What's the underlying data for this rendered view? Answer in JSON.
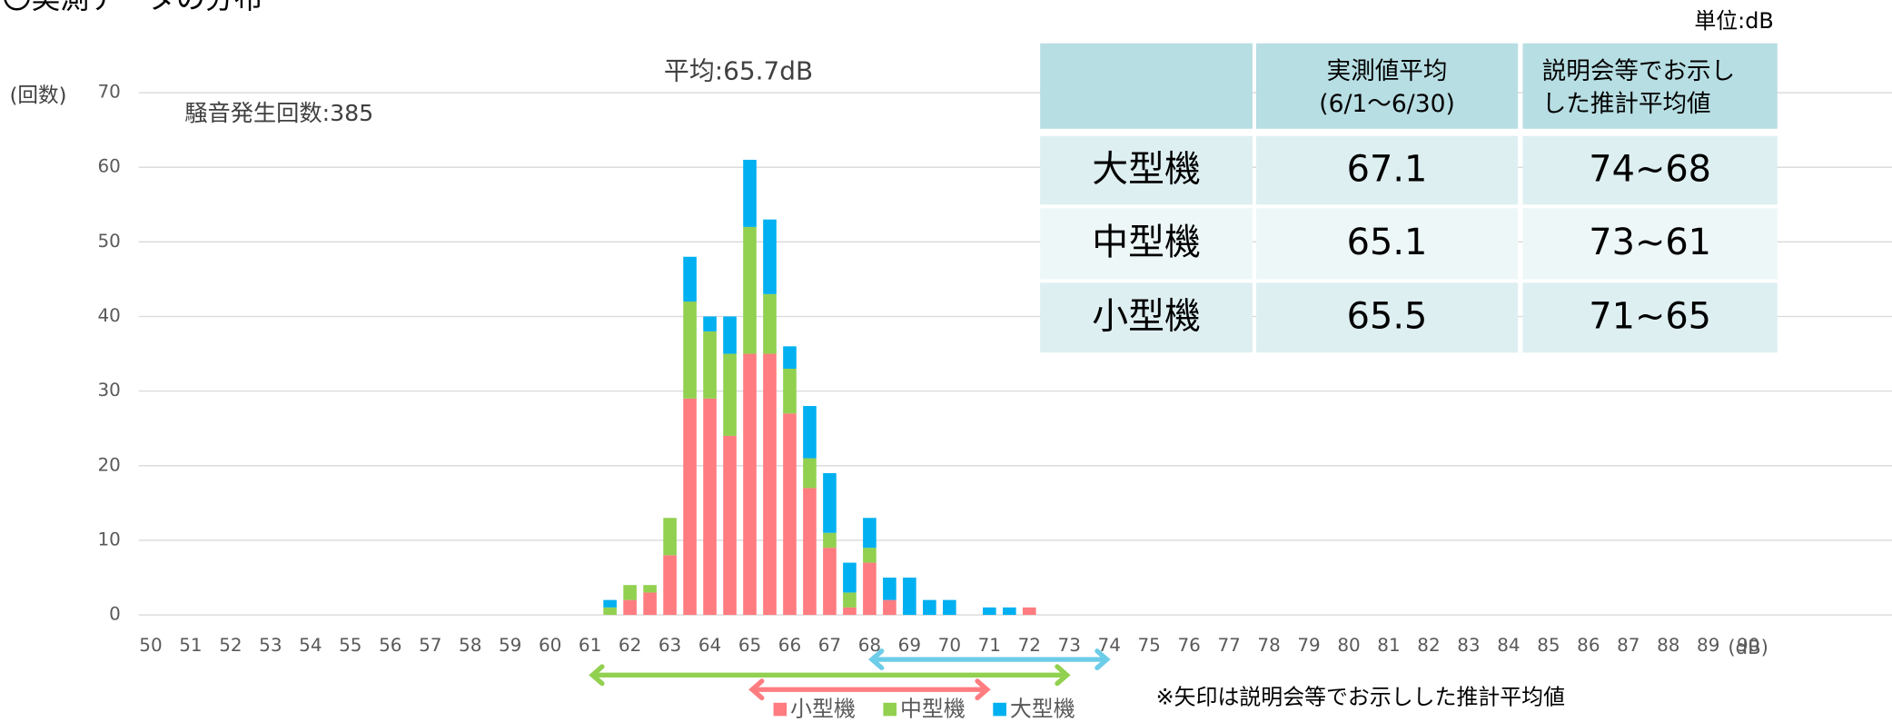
{
  "chart_data": {
    "type": "bar",
    "stacked": true,
    "title": "〇実測データの分布",
    "unit_note": "単位:dB",
    "average_label": "平均:65.7dB",
    "count_label": "騒音発生回数:385",
    "y_label": "(回数)",
    "x_label": "(dB)",
    "note": "※矢印は説明会等でお示しした推計平均値",
    "x": [
      61.5,
      62,
      62.5,
      63,
      63.5,
      64,
      64.5,
      65,
      65.5,
      66,
      66.5,
      67,
      67.5,
      68,
      68.5,
      69,
      69.5,
      70,
      71,
      71.5,
      72
    ],
    "series": [
      {
        "name": "小型機",
        "color": "#ff7c80",
        "values": [
          0,
          2,
          3,
          8,
          29,
          29,
          24,
          35,
          35,
          27,
          17,
          9,
          1,
          7,
          2,
          0,
          0,
          0,
          0,
          0,
          1
        ]
      },
      {
        "name": "中型機",
        "color": "#92d050",
        "values": [
          1,
          2,
          1,
          5,
          13,
          9,
          11,
          17,
          8,
          6,
          4,
          2,
          2,
          2,
          0,
          0,
          0,
          0,
          0,
          0,
          0
        ]
      },
      {
        "name": "大型機",
        "color": "#00b0f0",
        "values": [
          1,
          0,
          0,
          0,
          6,
          2,
          5,
          9,
          10,
          3,
          7,
          8,
          4,
          4,
          3,
          5,
          2,
          2,
          1,
          1,
          0
        ]
      }
    ],
    "xlim": [
      49.7,
      93.6
    ],
    "xticks": [
      50,
      51,
      52,
      53,
      54,
      55,
      56,
      57,
      58,
      59,
      60,
      61,
      62,
      63,
      64,
      65,
      66,
      67,
      68,
      69,
      70,
      71,
      72,
      73,
      74,
      75,
      76,
      77,
      78,
      79,
      80,
      81,
      82,
      83,
      84,
      85,
      86,
      87,
      88,
      89,
      90
    ],
    "ylim": [
      0,
      70
    ],
    "yticks": [
      0,
      10,
      20,
      30,
      40,
      50,
      60,
      70
    ],
    "grid": true,
    "arrows": [
      {
        "color": "#6ccde8",
        "from": 68,
        "to": 74
      },
      {
        "color": "#92d050",
        "from": 61,
        "to": 73
      },
      {
        "color": "#ff7c80",
        "from": 65,
        "to": 71
      }
    ],
    "table": {
      "header": [
        [
          "実測値平均",
          "(6/1〜6/30)"
        ],
        [
          "説明会等でお示し",
          "した推計平均値"
        ]
      ],
      "rows": [
        [
          "大型機",
          67.1,
          "74~68"
        ],
        [
          "中型機",
          65.1,
          "73~61"
        ],
        [
          "小型機",
          65.5,
          "71~65"
        ]
      ]
    }
  }
}
